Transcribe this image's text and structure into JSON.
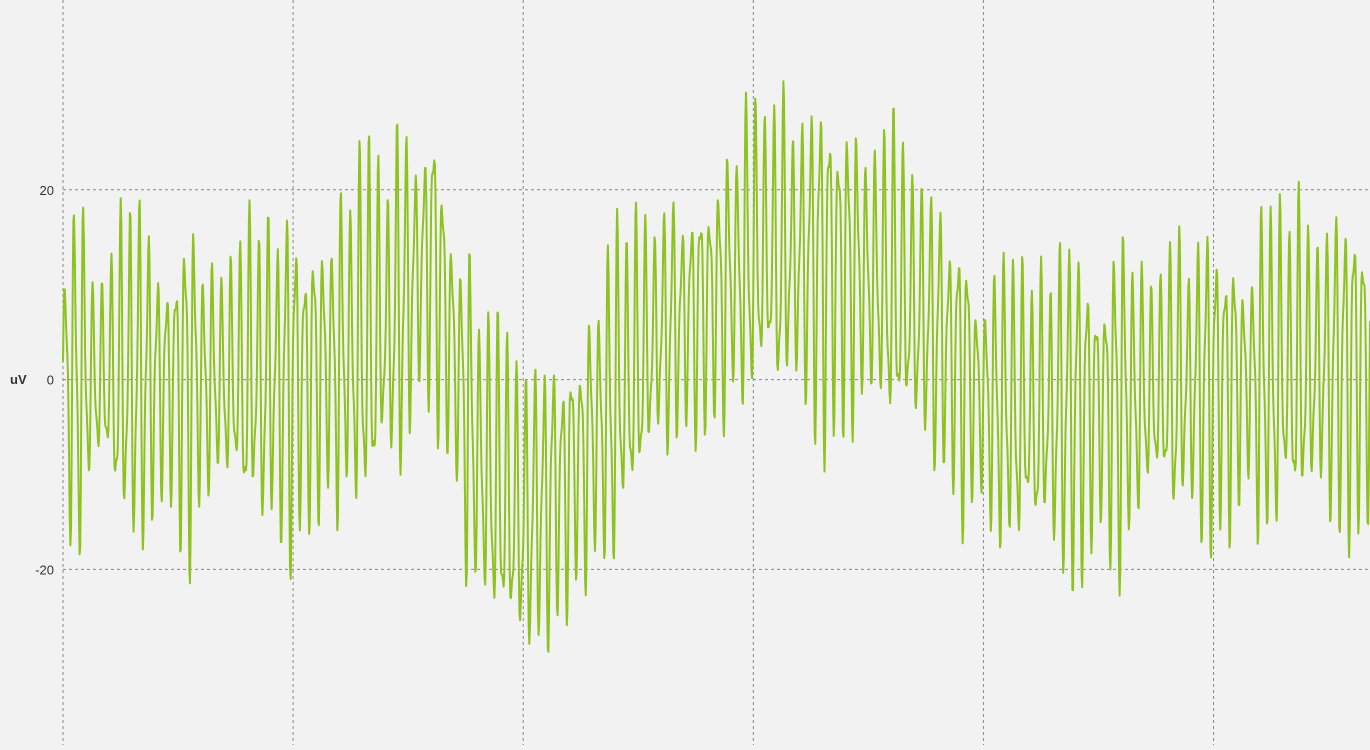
{
  "chart_data": {
    "type": "line",
    "ylabel": "uV",
    "ylim": [
      -38.5,
      40
    ],
    "xlim": [
      0,
      1.42
    ],
    "y_ticks": [
      "20",
      "0",
      "-20"
    ],
    "y_tick_values": [
      20,
      0,
      -20
    ],
    "x_gridlines": [
      0,
      0.25,
      0.5,
      0.75,
      1.0,
      1.25
    ],
    "grid": true,
    "grid_style": "dashed",
    "legend": "none",
    "line_color": "#8dc21f",
    "background_color": "#f2f2f2",
    "grid_color": "#888888",
    "series": [
      {
        "baseline_wave": {
          "x": [
            0.0,
            0.1,
            0.2,
            0.25,
            0.3,
            0.35,
            0.38,
            0.4,
            0.42,
            0.45,
            0.5,
            0.55,
            0.6,
            0.65,
            0.7,
            0.75,
            0.8,
            0.85,
            0.9,
            0.95,
            1.0,
            1.05,
            1.1,
            1.15,
            1.2,
            1.25,
            1.3,
            1.35,
            1.42
          ],
          "y": [
            0,
            0,
            0,
            0,
            2,
            5,
            10,
            14,
            5,
            -8,
            -15,
            -10,
            -2,
            5,
            8,
            13,
            13,
            12,
            10,
            5,
            -2,
            -4,
            -3,
            -2,
            -1,
            0,
            0,
            1,
            2
          ]
        },
        "fast_wave_period": 0.01,
        "fast_wave_amplitude_uV": 17,
        "x_samples_per_unit": 1500
      }
    ]
  }
}
